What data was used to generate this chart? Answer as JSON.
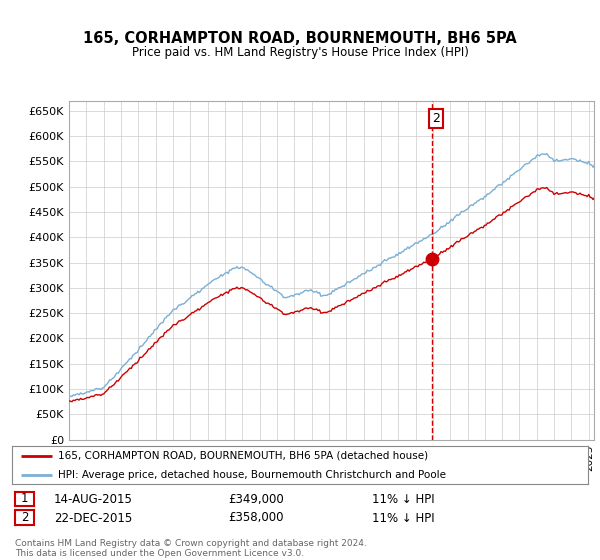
{
  "title": "165, CORHAMPTON ROAD, BOURNEMOUTH, BH6 5PA",
  "subtitle": "Price paid vs. HM Land Registry's House Price Index (HPI)",
  "ylabel_ticks": [
    "£0",
    "£50K",
    "£100K",
    "£150K",
    "£200K",
    "£250K",
    "£300K",
    "£350K",
    "£400K",
    "£450K",
    "£500K",
    "£550K",
    "£600K",
    "£650K"
  ],
  "ytick_vals": [
    0,
    50000,
    100000,
    150000,
    200000,
    250000,
    300000,
    350000,
    400000,
    450000,
    500000,
    550000,
    600000,
    650000
  ],
  "ylim": [
    0,
    670000
  ],
  "hpi_color": "#7bafd4",
  "price_color": "#cc0000",
  "vline_color": "#cc0000",
  "grid_color": "#cccccc",
  "background_color": "#ffffff",
  "legend_label_price": "165, CORHAMPTON ROAD, BOURNEMOUTH, BH6 5PA (detached house)",
  "legend_label_hpi": "HPI: Average price, detached house, Bournemouth Christchurch and Poole",
  "transaction1_label": "1",
  "transaction1_date": "14-AUG-2015",
  "transaction1_price": "£349,000",
  "transaction1_hpi": "11% ↓ HPI",
  "transaction2_label": "2",
  "transaction2_date": "22-DEC-2015",
  "transaction2_price": "£358,000",
  "transaction2_hpi": "11% ↓ HPI",
  "footnote": "Contains HM Land Registry data © Crown copyright and database right 2024.\nThis data is licensed under the Open Government Licence v3.0.",
  "transaction2_x": 2015.978,
  "transaction2_y": 358000,
  "xlim_start": 1995,
  "xlim_end": 2025.3
}
